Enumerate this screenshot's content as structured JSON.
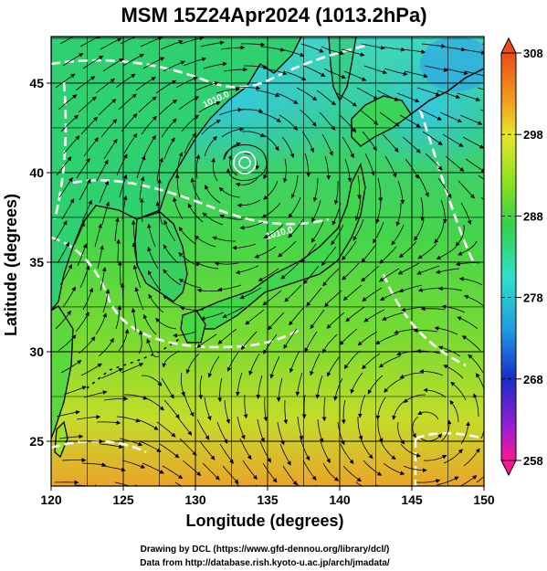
{
  "title": "MSM 15Z24Apr2024 (1013.2hPa)",
  "x_axis": {
    "label": "Longitude (degrees)",
    "ticks": [
      "120",
      "125",
      "130",
      "135",
      "140",
      "145",
      "150"
    ]
  },
  "y_axis": {
    "label": "Latitude  (degrees)",
    "ticks": [
      "25",
      "30",
      "35",
      "40",
      "45"
    ]
  },
  "colorbar": {
    "ticks": [
      "308",
      "298",
      "288",
      "278",
      "268",
      "258"
    ],
    "colors": [
      "#ff1493",
      "#9b1fcf",
      "#1a2bc8",
      "#1f9be0",
      "#2fe0c9",
      "#35d04a",
      "#8be022",
      "#e6e62a",
      "#f2a020",
      "#ee4a1a"
    ]
  },
  "contour_labels": [
    "1010.0",
    "1010.0"
  ],
  "credits": {
    "line1": "Drawing by DCL (https://www.gfd-dennou.org/library/dcl/)",
    "line2": "Data from http://database.rish.kyoto-u.ac.jp/arch/jmadata/"
  },
  "map": {
    "lon_range": [
      120,
      150
    ],
    "lat_range": [
      22.5,
      47.6
    ],
    "ocean_palette": [
      "#3fdfd0",
      "#39d36e",
      "#5cd83a",
      "#a6de2a",
      "#e1dc2c",
      "#f1a626"
    ],
    "coast_color": "#000000",
    "contour_color": "#ffffff"
  }
}
